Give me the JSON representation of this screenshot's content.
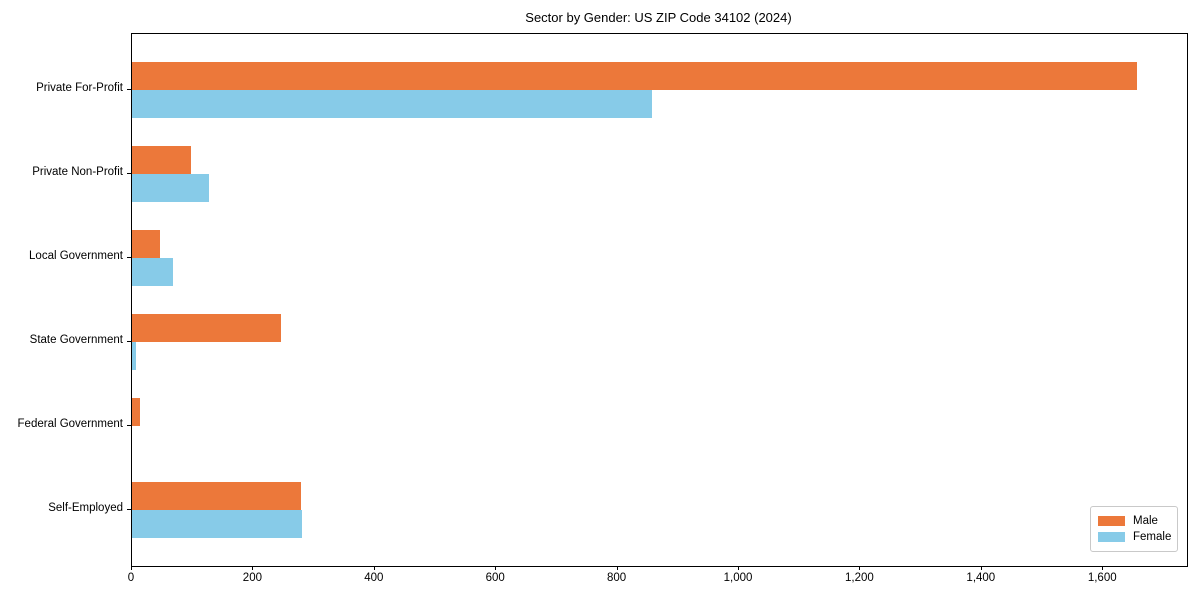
{
  "chart_data": {
    "type": "bar",
    "orientation": "horizontal",
    "title": "Sector by Gender: US ZIP Code 34102 (2024)",
    "categories": [
      "Private For-Profit",
      "Private Non-Profit",
      "Local Government",
      "State Government",
      "Federal Government",
      "Self-Employed"
    ],
    "series": [
      {
        "name": "Male",
        "color": "#ec783a",
        "values": [
          1656,
          97,
          46,
          245,
          13,
          279
        ]
      },
      {
        "name": "Female",
        "color": "#87cbe8",
        "values": [
          856,
          127,
          67,
          7,
          0,
          280
        ]
      }
    ],
    "xlabel": "",
    "ylabel": "",
    "xlim": [
      0,
      1738
    ],
    "xticks": [
      {
        "value": 0,
        "label": "0"
      },
      {
        "value": 200,
        "label": "200"
      },
      {
        "value": 400,
        "label": "400"
      },
      {
        "value": 600,
        "label": "600"
      },
      {
        "value": 800,
        "label": "800"
      },
      {
        "value": 1000,
        "label": "1,000"
      },
      {
        "value": 1200,
        "label": "1,200"
      },
      {
        "value": 1400,
        "label": "1,400"
      },
      {
        "value": 1600,
        "label": "1,600"
      }
    ],
    "grid": false,
    "legend": {
      "position": "lower right",
      "entries": [
        "Male",
        "Female"
      ]
    }
  },
  "colors": {
    "background": "#ffffff",
    "spine": "#000000",
    "legend_border": "#c9c9c9",
    "text": "#000000"
  }
}
